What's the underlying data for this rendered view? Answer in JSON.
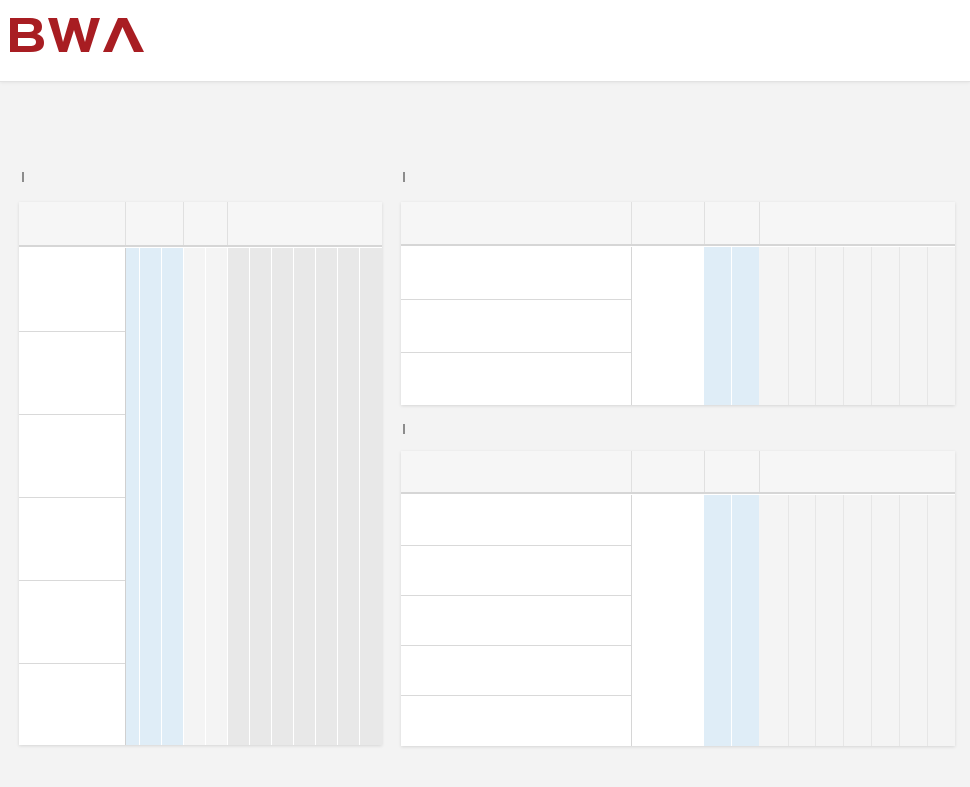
{
  "brand": {
    "name": "BWA",
    "color": "#a81d22"
  },
  "colors": {
    "page_bg": "#f3f3f3",
    "header_bg": "#f6f6f6",
    "blue_col": "#dfedf7",
    "light_col": "#f4f4f4",
    "gray_col": "#e8e8e8"
  },
  "left_table": {
    "headers": [
      "",
      "",
      "",
      ""
    ],
    "rows": [
      "",
      "",
      "",
      "",
      "",
      ""
    ]
  },
  "right_top_table": {
    "headers": [
      "",
      "",
      "",
      ""
    ],
    "rows": [
      "",
      "",
      ""
    ]
  },
  "right_bottom_table": {
    "headers": [
      "",
      "",
      "",
      ""
    ],
    "rows": [
      "",
      "",
      "",
      "",
      ""
    ]
  }
}
